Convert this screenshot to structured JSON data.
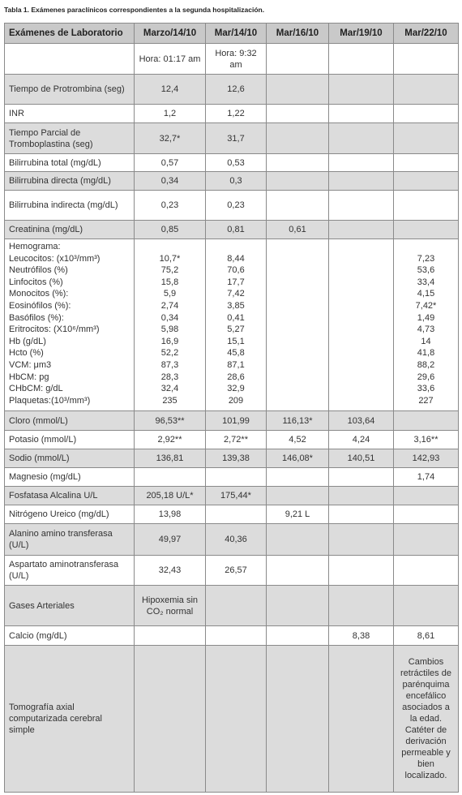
{
  "caption": "Tabla 1. Exámenes paraclínicos correspondientes a la segunda hospitalización.",
  "table": {
    "header": [
      "Exámenes de Laboratorio",
      "Marzo/14/10",
      "Mar/14/10",
      "Mar/16/10",
      "Mar/19/10",
      "Mar/22/10"
    ],
    "rows": [
      [
        null,
        "Hora: 01:17 am",
        "Hora: 9:32 am",
        null,
        null,
        null
      ],
      [
        "Tiempo de Protrombina (seg)",
        "12,4",
        "12,6",
        null,
        null,
        null
      ],
      [
        "INR",
        "1,2",
        "1,22",
        null,
        null,
        null
      ],
      [
        "Tiempo Parcial de Tromboplastina (seg)",
        "32,7*",
        "31,7",
        null,
        null,
        null
      ],
      [
        "Bilirrubina total (mg/dL)",
        "0,57",
        "0,53",
        null,
        null,
        null
      ],
      [
        "Bilirrubina directa (mg/dL)",
        "0,34",
        "0,3",
        null,
        null,
        null
      ],
      [
        "Bilirrubina indirecta (mg/dL)",
        "0,23",
        "0,23",
        null,
        null,
        null
      ],
      [
        "Creatinina (mg/dL)",
        "0,85",
        "0,81",
        "0,61",
        null,
        null
      ],
      [
        [
          "Hemograma:",
          "Leucocitos: (x10³/mm³)",
          "Neutrófilos (%)",
          "Linfocitos (%)",
          "Monocitos (%):",
          " Eosinófilos (%):",
          "Basófilos (%):",
          "Eritrocitos: (X10⁶/mm³)",
          "Hb (g/dL)",
          "Hcto (%)",
          "VCM: μm3",
          "HbCM: pg",
          "CHbCM: g/dL",
          "Plaquetas:(10³/mm³)"
        ],
        [
          null,
          "10,7*",
          "75,2",
          "15,8",
          "5,9",
          "2,74",
          "0,34",
          "5,98",
          "16,9",
          "52,2",
          "87,3",
          "28,3",
          "32,4",
          "235"
        ],
        [
          null,
          "8,44",
          "70,6",
          "17,7",
          "7,42",
          "3,85",
          "0,41",
          "5,27",
          "15,1",
          "45,8",
          "87,1",
          "28,6",
          "32,9",
          "209"
        ],
        null,
        null,
        [
          null,
          "7,23",
          "53,6",
          "33,4",
          "4,15",
          "7,42*",
          "1,49",
          "4,73",
          "14",
          "41,8",
          "88,2",
          "29,6",
          "33,6",
          "227"
        ]
      ],
      [
        "Cloro (mmol/L)",
        "96,53**",
        "101,99",
        "116,13*",
        "103,64",
        null
      ],
      [
        "Potasio (mmol/L)",
        "2,92**",
        "2,72**",
        "4,52",
        "4,24",
        "3,16**"
      ],
      [
        "Sodio (mmol/L)",
        "136,81",
        "139,38",
        "146,08*",
        "140,51",
        "142,93"
      ],
      [
        "Magnesio (mg/dL)",
        null,
        null,
        null,
        null,
        "1,74"
      ],
      [
        "Fosfatasa Alcalina U/L",
        "205,18 U/L*",
        "175,44*",
        null,
        null,
        null
      ],
      [
        "Nitrógeno Ureico (mg/dL)",
        "13,98",
        null,
        "9,21 L",
        null,
        null
      ],
      [
        "Alanino amino transferasa (U/L)",
        "49,97",
        "40,36",
        null,
        null,
        null
      ],
      [
        "Aspartato aminotransferasa (U/L)",
        "32,43",
        "26,57",
        null,
        null,
        null
      ],
      [
        "Gases Arteriales",
        "Hipoxemia sin CO₂ normal",
        null,
        null,
        null,
        null
      ],
      [
        "Calcio (mg/dL)",
        null,
        null,
        null,
        "8,38",
        "8,61"
      ],
      [
        "Tomografía axial computarizada cerebral simple",
        null,
        null,
        null,
        null,
        "Cambios retráctiles de parénquima encefálico asociados a la edad. Catéter de derivación permeable y bien localizado."
      ]
    ]
  }
}
